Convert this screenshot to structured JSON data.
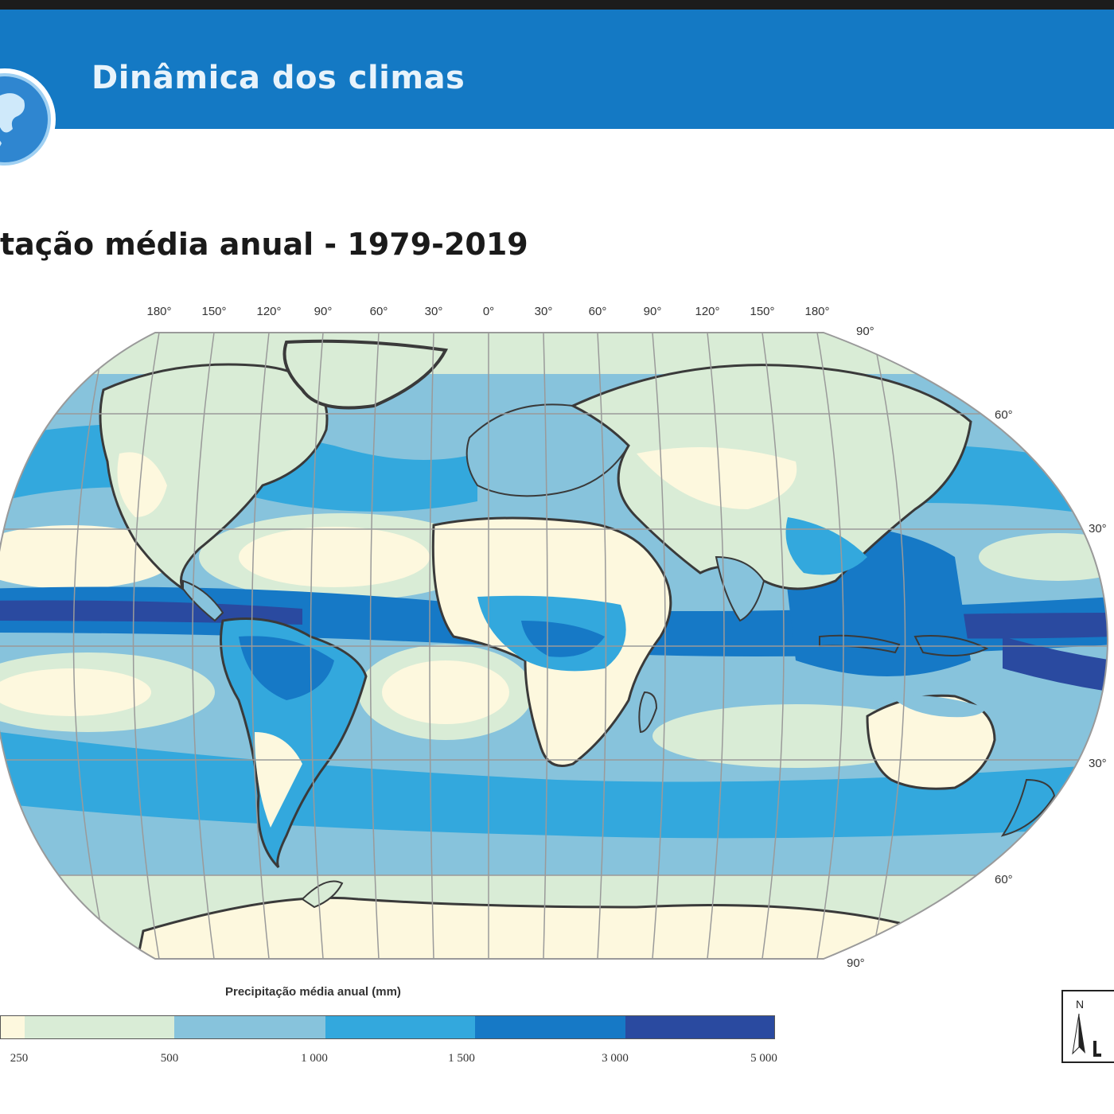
{
  "header": {
    "title": "Dinâmica dos climas",
    "accent_color": "#1479c4",
    "icon": "globe-icon"
  },
  "map": {
    "title": "tação média anual - 1979-2019",
    "longitude_labels": [
      "180°",
      "150°",
      "120°",
      "90°",
      "60°",
      "30°",
      "0°",
      "30°",
      "60°",
      "90°",
      "120°",
      "150°",
      "180°"
    ],
    "latitude_labels": [
      "90°",
      "60°",
      "30°",
      "30°",
      "60°",
      "90°"
    ]
  },
  "legend": {
    "title": "Precipitação média anual (mm)",
    "ticks": [
      "250",
      "500",
      "1 000",
      "1 500",
      "3 000",
      "5 000"
    ],
    "colors": [
      "#fdf8de",
      "#d9ecd6",
      "#87c3dc",
      "#33a8dd",
      "#1679c6",
      "#2a4aa0"
    ]
  },
  "north_arrow": {
    "letter": "N",
    "icon": "north-arrow-icon"
  }
}
